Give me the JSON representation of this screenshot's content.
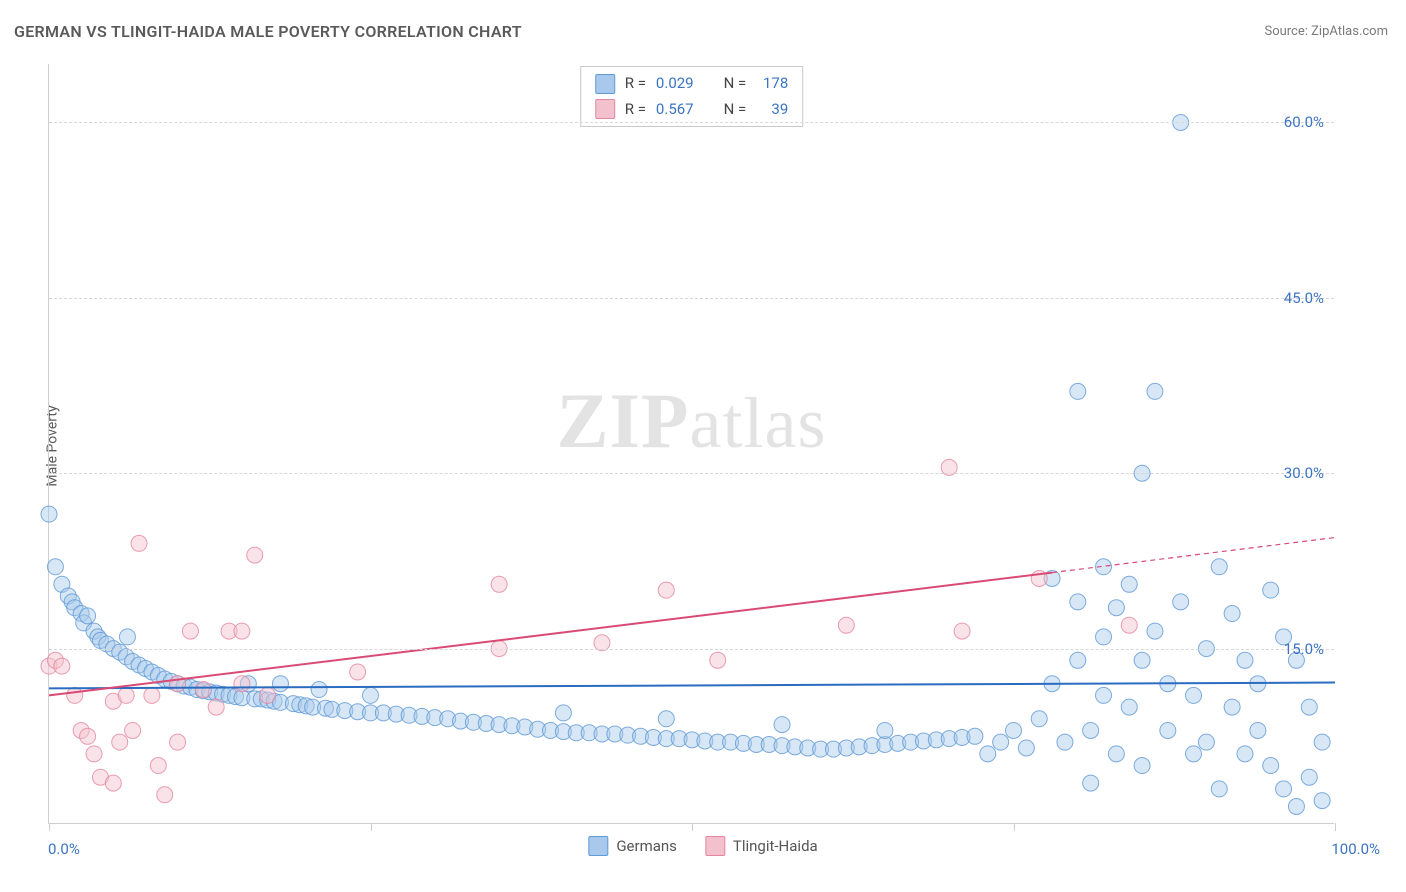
{
  "title": "GERMAN VS TLINGIT-HAIDA MALE POVERTY CORRELATION CHART",
  "source": "Source: ZipAtlas.com",
  "ylabel": "Male Poverty",
  "watermark_bold": "ZIP",
  "watermark_rest": "atlas",
  "chart": {
    "type": "scatter",
    "xlim": [
      0,
      100
    ],
    "ylim": [
      0,
      65
    ],
    "x_ticks_major": [
      0,
      25,
      50,
      75,
      100
    ],
    "x_tick_labels": {
      "left": "0.0%",
      "right": "100.0%"
    },
    "y_ticks": [
      {
        "v": 15,
        "label": "15.0%"
      },
      {
        "v": 30,
        "label": "30.0%"
      },
      {
        "v": 45,
        "label": "45.0%"
      },
      {
        "v": 60,
        "label": "60.0%"
      }
    ],
    "grid_color": "#d8d8d8",
    "axis_color": "#cfcfcf",
    "background_color": "#ffffff",
    "marker_radius": 8,
    "marker_radius_small": 7,
    "marker_opacity": 0.45,
    "marker_stroke_opacity": 0.8,
    "line_width": 2,
    "series": [
      {
        "name": "Germans",
        "color_fill": "#a9c9ec",
        "color_stroke": "#5f99d6",
        "color_line": "#2a6cc0",
        "r_label": "R =",
        "r_value": "0.029",
        "n_label": "N =",
        "n_value": "178",
        "regression": {
          "x1": 0,
          "y1": 11.6,
          "x2": 100,
          "y2": 12.1
        },
        "points": [
          [
            0,
            26.5
          ],
          [
            0.5,
            22
          ],
          [
            1,
            20.5
          ],
          [
            1.5,
            19.5
          ],
          [
            1.8,
            19
          ],
          [
            2,
            18.5
          ],
          [
            2.5,
            18
          ],
          [
            2.7,
            17.2
          ],
          [
            3,
            17.8
          ],
          [
            3.5,
            16.5
          ],
          [
            3.8,
            16
          ],
          [
            4,
            15.7
          ],
          [
            4.5,
            15.4
          ],
          [
            5,
            15
          ],
          [
            5.5,
            14.7
          ],
          [
            6,
            14.3
          ],
          [
            6.1,
            16
          ],
          [
            6.5,
            13.9
          ],
          [
            7,
            13.6
          ],
          [
            7.5,
            13.3
          ],
          [
            8,
            13
          ],
          [
            8.5,
            12.7
          ],
          [
            9,
            12.4
          ],
          [
            9.5,
            12.2
          ],
          [
            10,
            12
          ],
          [
            10.5,
            11.8
          ],
          [
            11,
            11.7
          ],
          [
            11.5,
            11.5
          ],
          [
            12,
            11.4
          ],
          [
            12.5,
            11.3
          ],
          [
            13,
            11.2
          ],
          [
            13.5,
            11.1
          ],
          [
            14,
            11
          ],
          [
            14.5,
            10.9
          ],
          [
            15,
            10.8
          ],
          [
            15.5,
            12
          ],
          [
            16,
            10.7
          ],
          [
            16.5,
            10.7
          ],
          [
            17,
            10.6
          ],
          [
            17.5,
            10.5
          ],
          [
            18,
            10.4
          ],
          [
            18,
            12
          ],
          [
            19,
            10.3
          ],
          [
            19.5,
            10.2
          ],
          [
            20,
            10.1
          ],
          [
            20.5,
            10
          ],
          [
            21,
            11.5
          ],
          [
            21.5,
            9.9
          ],
          [
            22,
            9.8
          ],
          [
            23,
            9.7
          ],
          [
            24,
            9.6
          ],
          [
            25,
            9.5
          ],
          [
            25,
            11
          ],
          [
            26,
            9.5
          ],
          [
            27,
            9.4
          ],
          [
            28,
            9.3
          ],
          [
            29,
            9.2
          ],
          [
            30,
            9.1
          ],
          [
            31,
            9
          ],
          [
            32,
            8.8
          ],
          [
            33,
            8.7
          ],
          [
            34,
            8.6
          ],
          [
            35,
            8.5
          ],
          [
            36,
            8.4
          ],
          [
            37,
            8.3
          ],
          [
            38,
            8.1
          ],
          [
            39,
            8
          ],
          [
            40,
            7.9
          ],
          [
            40,
            9.5
          ],
          [
            41,
            7.8
          ],
          [
            42,
            7.8
          ],
          [
            43,
            7.7
          ],
          [
            44,
            7.7
          ],
          [
            45,
            7.6
          ],
          [
            46,
            7.5
          ],
          [
            47,
            7.4
          ],
          [
            48,
            7.3
          ],
          [
            48,
            9
          ],
          [
            49,
            7.3
          ],
          [
            50,
            7.2
          ],
          [
            51,
            7.1
          ],
          [
            52,
            7
          ],
          [
            53,
            7
          ],
          [
            54,
            6.9
          ],
          [
            55,
            6.8
          ],
          [
            56,
            6.8
          ],
          [
            57,
            6.7
          ],
          [
            57,
            8.5
          ],
          [
            58,
            6.6
          ],
          [
            59,
            6.5
          ],
          [
            60,
            6.4
          ],
          [
            61,
            6.4
          ],
          [
            62,
            6.5
          ],
          [
            63,
            6.6
          ],
          [
            64,
            6.7
          ],
          [
            65,
            6.8
          ],
          [
            65,
            8
          ],
          [
            66,
            6.9
          ],
          [
            67,
            7
          ],
          [
            68,
            7.1
          ],
          [
            69,
            7.2
          ],
          [
            70,
            7.3
          ],
          [
            71,
            7.4
          ],
          [
            72,
            7.5
          ],
          [
            73,
            6
          ],
          [
            74,
            7
          ],
          [
            75,
            8
          ],
          [
            76,
            6.5
          ],
          [
            77,
            9
          ],
          [
            78,
            21
          ],
          [
            78,
            12
          ],
          [
            79,
            7
          ],
          [
            80,
            37
          ],
          [
            80,
            19
          ],
          [
            80,
            14
          ],
          [
            81,
            8
          ],
          [
            81,
            3.5
          ],
          [
            82,
            22
          ],
          [
            82,
            16
          ],
          [
            82,
            11
          ],
          [
            83,
            6
          ],
          [
            83,
            18.5
          ],
          [
            84,
            10
          ],
          [
            84,
            20.5
          ],
          [
            85,
            30
          ],
          [
            85,
            14
          ],
          [
            85,
            5
          ],
          [
            86,
            37
          ],
          [
            86,
            16.5
          ],
          [
            87,
            12
          ],
          [
            87,
            8
          ],
          [
            88,
            60
          ],
          [
            88,
            19
          ],
          [
            89,
            6
          ],
          [
            89,
            11
          ],
          [
            90,
            15
          ],
          [
            90,
            7
          ],
          [
            91,
            22
          ],
          [
            91,
            3
          ],
          [
            92,
            18
          ],
          [
            92,
            10
          ],
          [
            93,
            14
          ],
          [
            93,
            6
          ],
          [
            94,
            12
          ],
          [
            94,
            8
          ],
          [
            95,
            20
          ],
          [
            95,
            5
          ],
          [
            96,
            3
          ],
          [
            96,
            16
          ],
          [
            97,
            14
          ],
          [
            97,
            1.5
          ],
          [
            98,
            10
          ],
          [
            98,
            4
          ],
          [
            99,
            7
          ],
          [
            99,
            2
          ]
        ]
      },
      {
        "name": "Tlingit-Haida",
        "color_fill": "#f3c1cd",
        "color_stroke": "#e3869f",
        "color_line": "#d94a74",
        "r_label": "R =",
        "r_value": "0.567",
        "n_label": "N =",
        "n_value": "39",
        "regression": {
          "x1": 0,
          "y1": 11,
          "x2": 78,
          "y2": 21.5,
          "x3": 100,
          "y3": 24.5
        },
        "points": [
          [
            0,
            13.5
          ],
          [
            0.5,
            14
          ],
          [
            1,
            13.5
          ],
          [
            2,
            11
          ],
          [
            2.5,
            8
          ],
          [
            3,
            7.5
          ],
          [
            3.5,
            6
          ],
          [
            4,
            4
          ],
          [
            5,
            3.5
          ],
          [
            5,
            10.5
          ],
          [
            5.5,
            7
          ],
          [
            6,
            11
          ],
          [
            6.5,
            8
          ],
          [
            7,
            24
          ],
          [
            8,
            11
          ],
          [
            8.5,
            5
          ],
          [
            9,
            2.5
          ],
          [
            10,
            12
          ],
          [
            10,
            7
          ],
          [
            11,
            16.5
          ],
          [
            12,
            11.5
          ],
          [
            13,
            10
          ],
          [
            14,
            16.5
          ],
          [
            15,
            16.5
          ],
          [
            15,
            12
          ],
          [
            16,
            23
          ],
          [
            17,
            11
          ],
          [
            24,
            13
          ],
          [
            35,
            20.5
          ],
          [
            35,
            15
          ],
          [
            43,
            15.5
          ],
          [
            48,
            20
          ],
          [
            52,
            14
          ],
          [
            62,
            17
          ],
          [
            70,
            30.5
          ],
          [
            71,
            16.5
          ],
          [
            77,
            21
          ],
          [
            84,
            17
          ]
        ]
      }
    ],
    "legend_bottom": [
      {
        "label": "Germans",
        "fill": "#a9c9ec",
        "stroke": "#5f99d6"
      },
      {
        "label": "Tlingit-Haida",
        "fill": "#f3c1cd",
        "stroke": "#e3869f"
      }
    ]
  }
}
